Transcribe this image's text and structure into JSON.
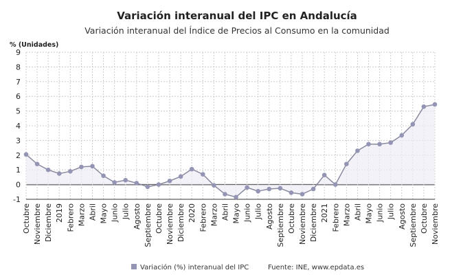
{
  "chart_data": {
    "type": "line",
    "title": "Variación interanual del IPC en Andalucía",
    "subtitle": "Variación interanual del Índice de Precios al Consumo en la comunidad",
    "ylabel": "% (Unidades)",
    "ylim": [
      -1,
      9
    ],
    "yticks": [
      -1,
      0,
      1,
      2,
      3,
      4,
      5,
      6,
      7,
      8,
      9
    ],
    "grid": true,
    "legend_placement": "bottom",
    "source": "Fuente: INE, www.epdata.es",
    "color": "#9494b4",
    "categories": [
      "Octubre",
      "Noviembre",
      "Diciembre",
      "2019",
      "Febrero",
      "Marzo",
      "Abril",
      "Mayo",
      "Junio",
      "Julio",
      "Agosto",
      "Septiembre",
      "Octubre",
      "Noviembre",
      "Diciembre",
      "2020",
      "Febrero",
      "Marzo",
      "Abril",
      "Mayo",
      "Junio",
      "Julio",
      "Agosto",
      "Septiembre",
      "Octubre",
      "Noviembre",
      "Diciembre",
      "2021",
      "Febrero",
      "Marzo",
      "Abril",
      "Mayo",
      "Junio",
      "Julio",
      "Agosto",
      "Septiembre",
      "Octubre",
      "Noviembre"
    ],
    "series": [
      {
        "name": "Variación (%) interanual del IPC",
        "values": [
          2.05,
          1.4,
          1.0,
          0.75,
          0.9,
          1.2,
          1.25,
          0.6,
          0.15,
          0.3,
          0.1,
          -0.15,
          0.0,
          0.25,
          0.55,
          1.05,
          0.7,
          -0.05,
          -0.65,
          -0.85,
          -0.2,
          -0.45,
          -0.3,
          -0.25,
          -0.55,
          -0.65,
          -0.3,
          0.65,
          0.0,
          1.4,
          2.3,
          2.75,
          2.75,
          2.85,
          3.35,
          4.1,
          5.3,
          5.45
        ]
      }
    ]
  }
}
